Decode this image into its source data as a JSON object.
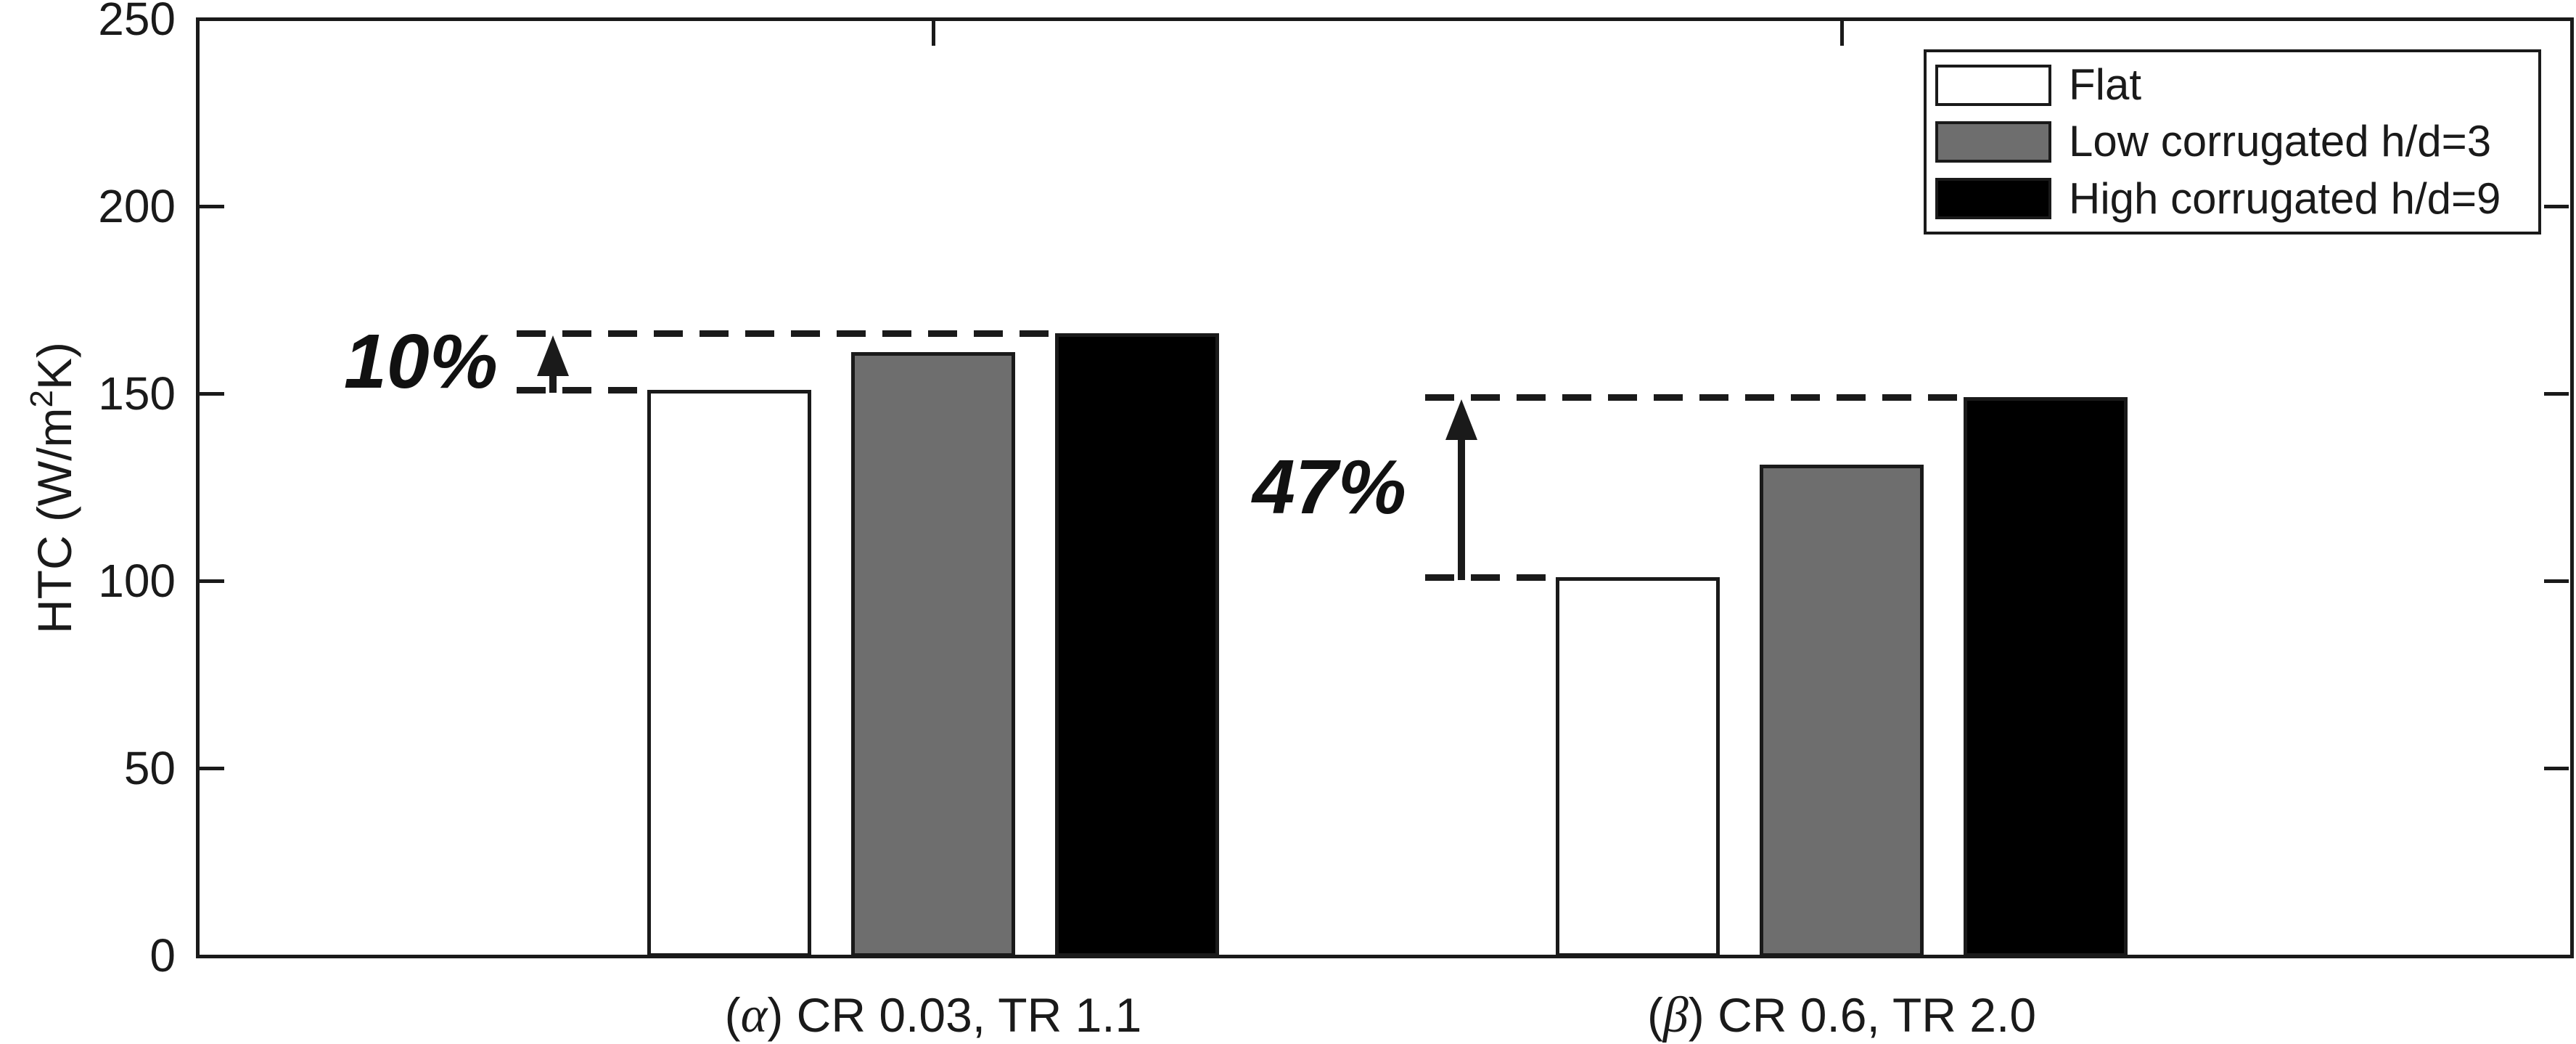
{
  "chart_data": {
    "type": "bar",
    "title": "",
    "ylabel": {
      "prefix": "HTC (W/m",
      "sup": "2",
      "suffix": "K)"
    },
    "ylim": [
      0,
      250
    ],
    "yticks": [
      0,
      50,
      100,
      150,
      200,
      250
    ],
    "grid": false,
    "legend_position": "top-right",
    "categories": [
      {
        "symbol": "α",
        "label": "CR 0.03, TR 1.1"
      },
      {
        "symbol": "β",
        "label": "CR 0.6, TR 2.0"
      }
    ],
    "series": [
      {
        "name": "Flat",
        "color": "#ffffff",
        "values": [
          151,
          101
        ]
      },
      {
        "name": "Low corrugated h/d=3",
        "color": "#6e6e6e",
        "values": [
          161,
          131
        ]
      },
      {
        "name": "High corrugated h/d=9",
        "color": "#000000",
        "values": [
          166,
          149
        ]
      }
    ],
    "annotations": [
      {
        "label": "10%",
        "group": 0,
        "from_series": 0,
        "to_series": 2
      },
      {
        "label": "47%",
        "group": 1,
        "from_series": 0,
        "to_series": 2
      }
    ]
  },
  "colors": {
    "axis": "#1a1a1a",
    "background": "#ffffff"
  }
}
